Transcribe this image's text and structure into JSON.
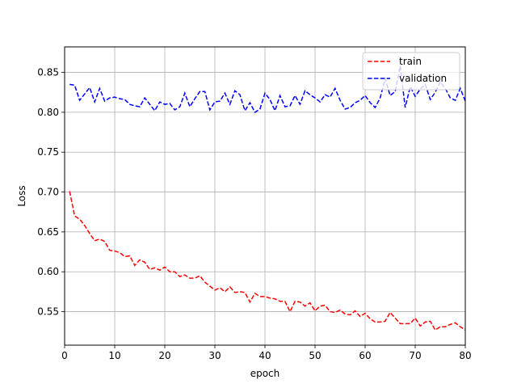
{
  "chart_data": {
    "type": "line",
    "title": "",
    "xlabel": "epoch",
    "ylabel": "Loss",
    "xlim": [
      0,
      80
    ],
    "ylim": [
      0.508,
      0.882
    ],
    "xticks": [
      0,
      10,
      20,
      30,
      40,
      50,
      60,
      70,
      80
    ],
    "yticks": [
      0.55,
      0.6,
      0.65,
      0.7,
      0.75,
      0.8,
      0.85
    ],
    "ytick_labels": [
      "0.55",
      "0.60",
      "0.65",
      "0.70",
      "0.75",
      "0.80",
      "0.85"
    ],
    "grid": true,
    "legend_position": "top-right",
    "series": [
      {
        "name": "train",
        "color": "#ff0000",
        "linestyle": "dashed",
        "x": [
          1,
          2,
          3,
          4,
          5,
          6,
          7,
          8,
          9,
          10,
          11,
          12,
          13,
          14,
          15,
          16,
          17,
          18,
          19,
          20,
          21,
          22,
          23,
          24,
          25,
          26,
          27,
          28,
          29,
          30,
          31,
          32,
          33,
          34,
          35,
          36,
          37,
          38,
          39,
          40,
          41,
          42,
          43,
          44,
          45,
          46,
          47,
          48,
          49,
          50,
          51,
          52,
          53,
          54,
          55,
          56,
          57,
          58,
          59,
          60,
          61,
          62,
          63,
          64,
          65,
          66,
          67,
          68,
          69,
          70,
          71,
          72,
          73,
          74,
          75,
          76,
          77,
          78,
          79,
          80
        ],
        "values": [
          0.701,
          0.67,
          0.666,
          0.658,
          0.648,
          0.639,
          0.641,
          0.638,
          0.627,
          0.626,
          0.624,
          0.619,
          0.62,
          0.608,
          0.615,
          0.612,
          0.603,
          0.605,
          0.602,
          0.606,
          0.6,
          0.6,
          0.594,
          0.596,
          0.592,
          0.592,
          0.595,
          0.587,
          0.582,
          0.577,
          0.58,
          0.575,
          0.581,
          0.574,
          0.575,
          0.574,
          0.562,
          0.573,
          0.569,
          0.569,
          0.567,
          0.566,
          0.563,
          0.563,
          0.55,
          0.563,
          0.562,
          0.557,
          0.561,
          0.551,
          0.557,
          0.558,
          0.55,
          0.549,
          0.552,
          0.547,
          0.546,
          0.551,
          0.544,
          0.548,
          0.541,
          0.537,
          0.537,
          0.538,
          0.549,
          0.542,
          0.535,
          0.535,
          0.535,
          0.542,
          0.532,
          0.537,
          0.538,
          0.527,
          0.531,
          0.531,
          0.534,
          0.536,
          0.531,
          0.527
        ]
      },
      {
        "name": "validation",
        "color": "#0000ff",
        "linestyle": "dashed",
        "x": [
          1,
          2,
          3,
          4,
          5,
          6,
          7,
          8,
          9,
          10,
          11,
          12,
          13,
          14,
          15,
          16,
          17,
          18,
          19,
          20,
          21,
          22,
          23,
          24,
          25,
          26,
          27,
          28,
          29,
          30,
          31,
          32,
          33,
          34,
          35,
          36,
          37,
          38,
          39,
          40,
          41,
          42,
          43,
          44,
          45,
          46,
          47,
          48,
          49,
          50,
          51,
          52,
          53,
          54,
          55,
          56,
          57,
          58,
          59,
          60,
          61,
          62,
          63,
          64,
          65,
          66,
          67,
          68,
          69,
          70,
          71,
          72,
          73,
          74,
          75,
          76,
          77,
          78,
          79,
          80
        ],
        "values": [
          0.835,
          0.834,
          0.815,
          0.823,
          0.831,
          0.813,
          0.83,
          0.814,
          0.818,
          0.819,
          0.817,
          0.816,
          0.81,
          0.808,
          0.807,
          0.818,
          0.81,
          0.802,
          0.813,
          0.81,
          0.811,
          0.803,
          0.807,
          0.824,
          0.807,
          0.817,
          0.826,
          0.826,
          0.803,
          0.813,
          0.814,
          0.824,
          0.81,
          0.827,
          0.822,
          0.802,
          0.812,
          0.8,
          0.804,
          0.824,
          0.816,
          0.802,
          0.821,
          0.807,
          0.808,
          0.821,
          0.81,
          0.827,
          0.822,
          0.818,
          0.813,
          0.822,
          0.819,
          0.83,
          0.815,
          0.804,
          0.806,
          0.812,
          0.815,
          0.821,
          0.812,
          0.806,
          0.818,
          0.842,
          0.821,
          0.826,
          0.858,
          0.806,
          0.832,
          0.82,
          0.829,
          0.835,
          0.816,
          0.825,
          0.838,
          0.83,
          0.818,
          0.815,
          0.83,
          0.814
        ]
      }
    ]
  }
}
